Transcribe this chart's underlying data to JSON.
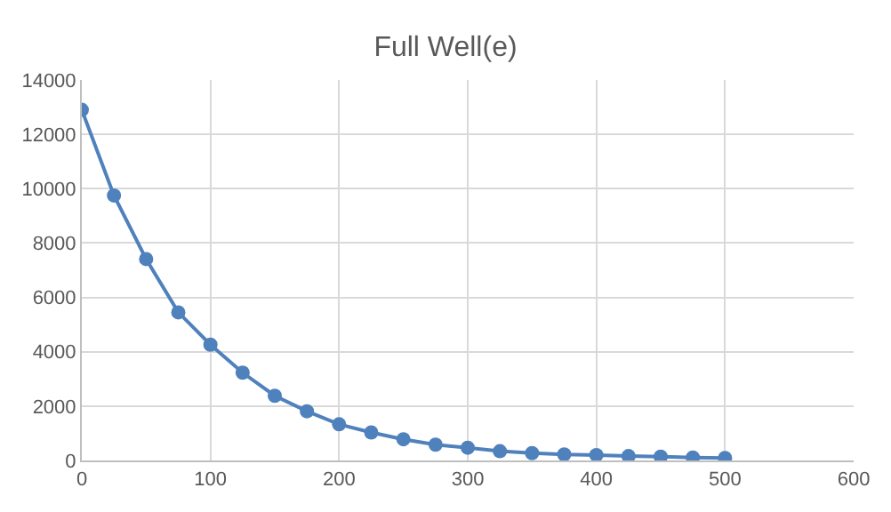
{
  "chart_data": {
    "type": "line",
    "title": "Full Well(e)",
    "x": [
      0,
      25,
      50,
      75,
      100,
      125,
      150,
      175,
      200,
      225,
      250,
      275,
      300,
      325,
      350,
      375,
      400,
      425,
      450,
      475,
      500
    ],
    "series": [
      {
        "color": "#4f81bd",
        "values": [
          12900,
          9750,
          7410,
          5450,
          4260,
          3230,
          2380,
          1810,
          1330,
          1030,
          780,
          580,
          470,
          340,
          270,
          220,
          200,
          160,
          140,
          110,
          90
        ]
      }
    ],
    "xlim": [
      0,
      600
    ],
    "xticks": [
      0,
      100,
      200,
      300,
      400,
      500,
      600
    ],
    "ylim": [
      0,
      14000
    ],
    "yticks": [
      0,
      2000,
      4000,
      6000,
      8000,
      10000,
      12000,
      14000
    ],
    "grid": true,
    "marker": "circle",
    "line_style": "solid"
  }
}
